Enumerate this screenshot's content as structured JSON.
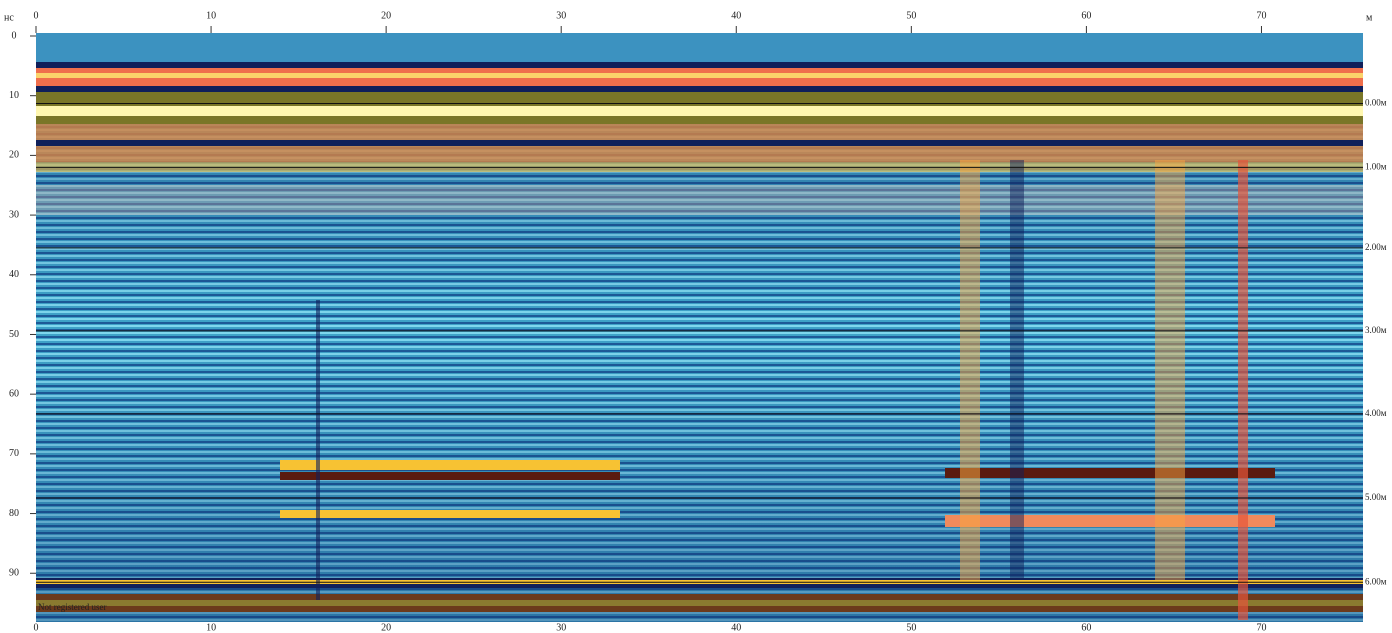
{
  "chart_data": {
    "type": "radargram",
    "x_unit": "м",
    "y_unit": "нс",
    "xlim": [
      0,
      75.8
    ],
    "ylim": [
      0,
      98
    ],
    "xticks": [
      0,
      10,
      20,
      30,
      40,
      50,
      60,
      70
    ],
    "yticks": [
      0,
      10,
      20,
      30,
      40,
      50,
      60,
      70,
      80,
      90
    ],
    "depth_ticks": [
      {
        "value": 11.3,
        "label": "0.00м"
      },
      {
        "value": 22,
        "label": "1.00м"
      },
      {
        "value": 35.5,
        "label": "2.00м"
      },
      {
        "value": 49.4,
        "label": "3.00м"
      },
      {
        "value": 63.3,
        "label": "4.00м"
      },
      {
        "value": 77.4,
        "label": "5.00м"
      },
      {
        "value": 91.5,
        "label": "6.00м"
      }
    ],
    "watermark": "Not registered user"
  }
}
